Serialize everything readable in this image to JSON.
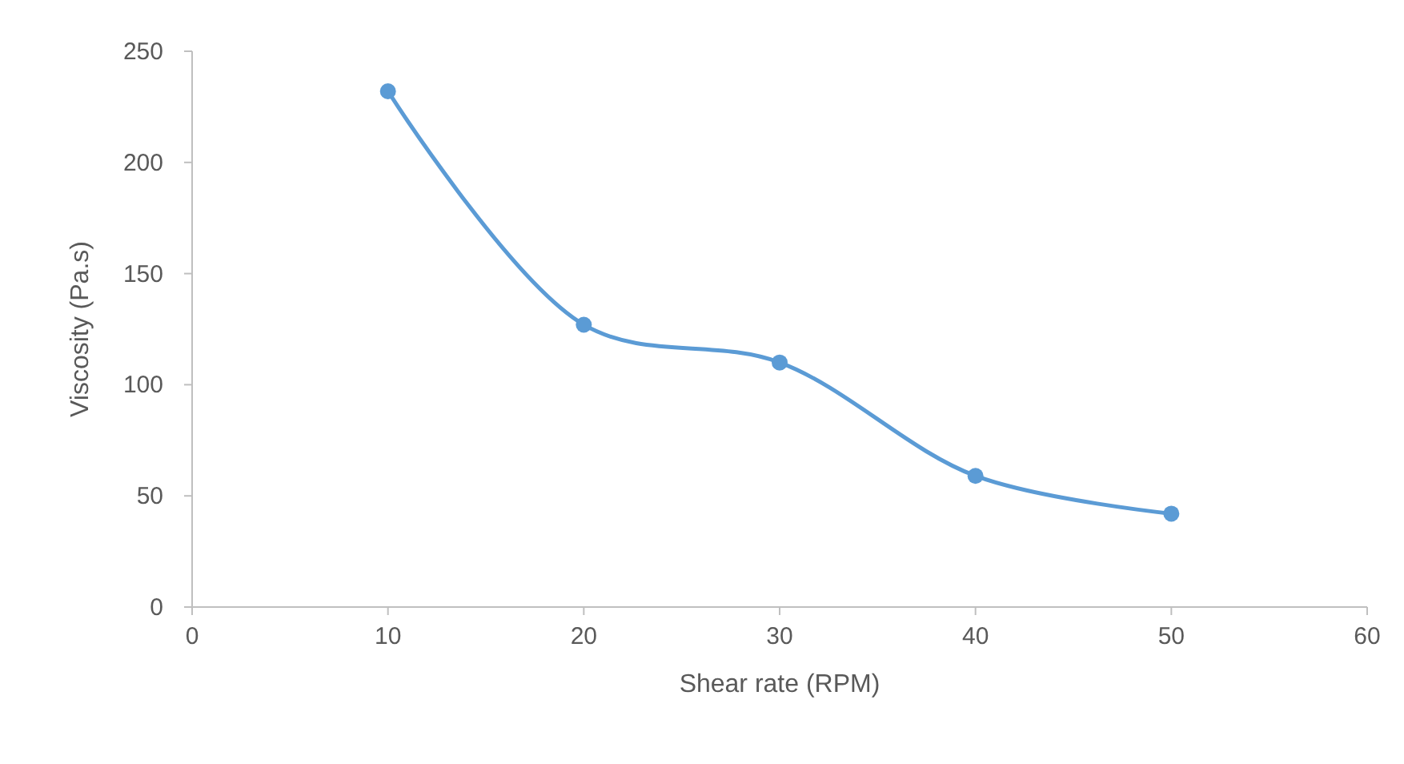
{
  "chart_data": {
    "type": "line",
    "xlabel": "Shear rate (RPM)",
    "ylabel": "Viscosity (Pa.s)",
    "x": [
      10,
      20,
      30,
      40,
      50
    ],
    "series": [
      {
        "color": "#5b9bd5",
        "values": [
          232,
          127,
          110,
          59,
          42
        ]
      }
    ],
    "xlim": [
      0,
      60
    ],
    "xticks": [
      0,
      10,
      20,
      30,
      40,
      50,
      60
    ],
    "ylim": [
      0,
      250
    ],
    "yticks": [
      0,
      50,
      100,
      150,
      200,
      250
    ],
    "marker": "circle",
    "line_style": "solid",
    "grid": false
  }
}
